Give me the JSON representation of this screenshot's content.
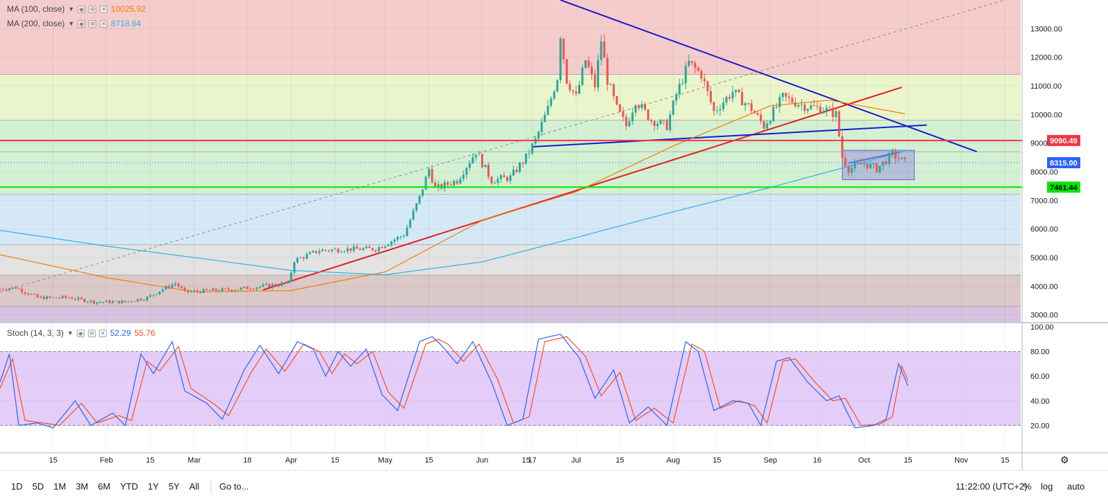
{
  "indicators": {
    "ma100": {
      "label": "MA (100, close)",
      "value": "10025.92",
      "color": "#f57c00"
    },
    "ma200": {
      "label": "MA (200, close)",
      "value": "8718.64",
      "color": "#2bb3e6"
    },
    "stoch": {
      "label": "Stoch (14, 3, 3)",
      "k_value": "52.29",
      "d_value": "55.76",
      "k_color": "#2962ff",
      "d_color": "#f4511e"
    }
  },
  "price_badges": [
    {
      "text": "9090.49",
      "price": 9090.49,
      "bg": "#f23645",
      "fg": "#ffffff"
    },
    {
      "text": "8315.00",
      "price": 8315.0,
      "bg": "#2962ff",
      "fg": "#ffffff"
    },
    {
      "text": "7461.44",
      "price": 7461.44,
      "bg": "#00e600",
      "fg": "#000000"
    }
  ],
  "toolbar": {
    "timeframes": [
      "1D",
      "5D",
      "1M",
      "3M",
      "6M",
      "YTD",
      "1Y",
      "5Y",
      "All"
    ],
    "goto": "Go to...",
    "clock": "11:22:00 (UTC+2)",
    "percent": "%",
    "log": "log",
    "auto": "auto"
  },
  "chart_data": [
    {
      "type": "candlestick",
      "y_ticks": [
        3000,
        4000,
        5000,
        6000,
        7000,
        8000,
        9000,
        10000,
        11000,
        12000,
        13000
      ],
      "y_tick_labels": [
        "3000.00",
        "4000.00",
        "5000.00",
        "6000.00",
        "7000.00",
        "8000.00",
        "9000.00",
        "10000.00",
        "11000.00",
        "12000.00",
        "13000.00"
      ],
      "ylim": [
        2750,
        14000
      ],
      "x_range": [
        "2018-12-29",
        "2019-11-20"
      ],
      "x_ticks": [
        {
          "date": "2019-01-15",
          "label": "15"
        },
        {
          "date": "2019-02-01",
          "label": "Feb"
        },
        {
          "date": "2019-02-15",
          "label": "15"
        },
        {
          "date": "2019-03-01",
          "label": "Mar"
        },
        {
          "date": "2019-03-18",
          "label": "18"
        },
        {
          "date": "2019-04-01",
          "label": "Apr"
        },
        {
          "date": "2019-04-15",
          "label": "15"
        },
        {
          "date": "2019-05-01",
          "label": "May"
        },
        {
          "date": "2019-05-15",
          "label": "15"
        },
        {
          "date": "2019-06-01",
          "label": "Jun"
        },
        {
          "date": "2019-06-15",
          "label": "15"
        },
        {
          "date": "2019-06-17",
          "label": "17"
        },
        {
          "date": "2019-07-01",
          "label": "Jul"
        },
        {
          "date": "2019-07-15",
          "label": "15"
        },
        {
          "date": "2019-08-01",
          "label": "Aug"
        },
        {
          "date": "2019-08-15",
          "label": "15"
        },
        {
          "date": "2019-09-01",
          "label": "Sep"
        },
        {
          "date": "2019-09-16",
          "label": "16"
        },
        {
          "date": "2019-10-01",
          "label": "Oct"
        },
        {
          "date": "2019-10-15",
          "label": "15"
        },
        {
          "date": "2019-11-01",
          "label": "Nov"
        },
        {
          "date": "2019-11-15",
          "label": "15"
        }
      ],
      "price_anchors": [
        [
          "2018-12-29",
          3900
        ],
        [
          "2019-01-03",
          3950
        ],
        [
          "2019-01-10",
          3600
        ],
        [
          "2019-01-20",
          3600
        ],
        [
          "2019-01-28",
          3450
        ],
        [
          "2019-02-07",
          3450
        ],
        [
          "2019-02-14",
          3600
        ],
        [
          "2019-02-19",
          3900
        ],
        [
          "2019-02-23",
          4100
        ],
        [
          "2019-02-26",
          3800
        ],
        [
          "2019-03-15",
          3900
        ],
        [
          "2019-03-31",
          4100
        ],
        [
          "2019-04-02",
          4900
        ],
        [
          "2019-04-10",
          5250
        ],
        [
          "2019-04-20",
          5300
        ],
        [
          "2019-04-28",
          5300
        ],
        [
          "2019-05-07",
          5800
        ],
        [
          "2019-05-12",
          7100
        ],
        [
          "2019-05-15",
          8100
        ],
        [
          "2019-05-17",
          7400
        ],
        [
          "2019-05-24",
          7700
        ],
        [
          "2019-05-30",
          8700
        ],
        [
          "2019-06-04",
          7700
        ],
        [
          "2019-06-10",
          7800
        ],
        [
          "2019-06-15",
          8500
        ],
        [
          "2019-06-18",
          9100
        ],
        [
          "2019-06-22",
          10200
        ],
        [
          "2019-06-25",
          11300
        ],
        [
          "2019-06-26",
          12800
        ],
        [
          "2019-06-28",
          11200
        ],
        [
          "2019-07-01",
          10600
        ],
        [
          "2019-07-04",
          11900
        ],
        [
          "2019-07-07",
          11000
        ],
        [
          "2019-07-09",
          12600
        ],
        [
          "2019-07-11",
          11200
        ],
        [
          "2019-07-14",
          10200
        ],
        [
          "2019-07-17",
          9600
        ],
        [
          "2019-07-20",
          10500
        ],
        [
          "2019-07-25",
          9800
        ],
        [
          "2019-07-30",
          9600
        ],
        [
          "2019-08-02",
          10700
        ],
        [
          "2019-08-06",
          11800
        ],
        [
          "2019-08-10",
          11400
        ],
        [
          "2019-08-14",
          10100
        ],
        [
          "2019-08-20",
          10800
        ],
        [
          "2019-08-26",
          10200
        ],
        [
          "2019-08-30",
          9600
        ],
        [
          "2019-09-05",
          10600
        ],
        [
          "2019-09-12",
          10300
        ],
        [
          "2019-09-18",
          10200
        ],
        [
          "2019-09-22",
          10000
        ],
        [
          "2019-09-24",
          8500
        ],
        [
          "2019-09-26",
          8100
        ],
        [
          "2019-10-01",
          8300
        ],
        [
          "2019-10-05",
          8100
        ],
        [
          "2019-10-08",
          8400
        ],
        [
          "2019-10-10",
          8600
        ],
        [
          "2019-10-14",
          8315
        ]
      ],
      "ma100_anchors": [
        [
          "2018-12-29",
          5100
        ],
        [
          "2019-02-01",
          4300
        ],
        [
          "2019-03-01",
          3800
        ],
        [
          "2019-04-01",
          3850
        ],
        [
          "2019-05-01",
          4500
        ],
        [
          "2019-06-01",
          6300
        ],
        [
          "2019-07-01",
          7300
        ],
        [
          "2019-08-01",
          8900
        ],
        [
          "2019-09-01",
          10300
        ],
        [
          "2019-09-20",
          10500
        ],
        [
          "2019-10-14",
          10025
        ]
      ],
      "ma200_anchors": [
        [
          "2018-12-29",
          5950
        ],
        [
          "2019-02-01",
          5400
        ],
        [
          "2019-03-01",
          5000
        ],
        [
          "2019-04-01",
          4550
        ],
        [
          "2019-05-01",
          4400
        ],
        [
          "2019-06-01",
          4850
        ],
        [
          "2019-07-01",
          5700
        ],
        [
          "2019-08-01",
          6600
        ],
        [
          "2019-09-01",
          7450
        ],
        [
          "2019-10-14",
          8718
        ]
      ],
      "fib_levels": [
        3300,
        4390,
        5450,
        7210,
        8700,
        9800,
        11400
      ],
      "zones": [
        {
          "from": 11400,
          "to": 14000,
          "color": "#f5cccc"
        },
        {
          "from": 9800,
          "to": 11400,
          "color": "#eaf5cc"
        },
        {
          "from": 7210,
          "to": 9800,
          "color": "#d3f0d3"
        },
        {
          "from": 5450,
          "to": 7210,
          "color": "#d5e8f5"
        },
        {
          "from": 4390,
          "to": 5450,
          "color": "#e3e3e3"
        },
        {
          "from": 3300,
          "to": 4390,
          "color": "#dbc9c9"
        },
        {
          "from": 2750,
          "to": 3300,
          "color": "#d9c2e0"
        }
      ],
      "trendlines": [
        {
          "name": "descending-resistance",
          "from": [
            "2019-06-26",
            14000
          ],
          "to": [
            "2019-11-06",
            8700
          ],
          "color": "#1a1aca"
        },
        {
          "name": "ascending-support",
          "from": [
            "2019-03-23",
            3870
          ],
          "to": [
            "2019-10-13",
            10950
          ],
          "color": "#e31c1c"
        },
        {
          "name": "neckline",
          "from": [
            "2019-06-17",
            8870
          ],
          "to": [
            "2019-10-21",
            9630
          ],
          "color": "#1a1aca"
        },
        {
          "name": "long-dashed-trend",
          "from": [
            "2018-12-29",
            3800
          ],
          "to": [
            "2019-11-15",
            14000
          ],
          "color": "#8a8a8a",
          "dashed": true
        },
        {
          "name": "channel-line",
          "from": [
            "2019-09-26",
            8300
          ],
          "to": [
            "2019-10-13",
            8700
          ],
          "color": "#4a56d0"
        }
      ],
      "horizontal_lines": [
        {
          "name": "resistance-line",
          "price": 9090.49,
          "color": "#f23645"
        },
        {
          "name": "support-line",
          "price": 7461.44,
          "color": "#00e600"
        },
        {
          "name": "last-price-line",
          "price": 8315.0,
          "color": "#2962ff",
          "dotted": true
        }
      ],
      "rectangle": {
        "from": [
          "2019-09-24",
          8750
        ],
        "to": [
          "2019-10-17",
          7720
        ],
        "fill": "#8c85de",
        "stroke": "#6a5fcf"
      }
    },
    {
      "type": "line",
      "name": "stochastic",
      "y_ticks": [
        20,
        40,
        60,
        80,
        100
      ],
      "y_tick_labels": [
        "20.00",
        "40.00",
        "60.00",
        "80.00",
        "100.00"
      ],
      "ylim": [
        0,
        100
      ],
      "band": [
        20,
        80
      ],
      "k_anchors": [
        [
          "2018-12-29",
          55
        ],
        [
          "2019-01-01",
          78
        ],
        [
          "2019-01-04",
          20
        ],
        [
          "2019-01-10",
          22
        ],
        [
          "2019-01-15",
          18
        ],
        [
          "2019-01-22",
          40
        ],
        [
          "2019-01-27",
          20
        ],
        [
          "2019-02-03",
          30
        ],
        [
          "2019-02-07",
          20
        ],
        [
          "2019-02-12",
          78
        ],
        [
          "2019-02-16",
          62
        ],
        [
          "2019-02-22",
          88
        ],
        [
          "2019-02-26",
          48
        ],
        [
          "2019-03-05",
          38
        ],
        [
          "2019-03-10",
          25
        ],
        [
          "2019-03-17",
          65
        ],
        [
          "2019-03-22",
          85
        ],
        [
          "2019-03-28",
          62
        ],
        [
          "2019-04-03",
          88
        ],
        [
          "2019-04-08",
          82
        ],
        [
          "2019-04-12",
          60
        ],
        [
          "2019-04-16",
          80
        ],
        [
          "2019-04-20",
          68
        ],
        [
          "2019-04-25",
          82
        ],
        [
          "2019-04-30",
          45
        ],
        [
          "2019-05-05",
          32
        ],
        [
          "2019-05-12",
          88
        ],
        [
          "2019-05-16",
          92
        ],
        [
          "2019-05-19",
          85
        ],
        [
          "2019-05-24",
          70
        ],
        [
          "2019-05-29",
          88
        ],
        [
          "2019-06-04",
          55
        ],
        [
          "2019-06-09",
          20
        ],
        [
          "2019-06-14",
          25
        ],
        [
          "2019-06-19",
          90
        ],
        [
          "2019-06-26",
          94
        ],
        [
          "2019-07-02",
          75
        ],
        [
          "2019-07-07",
          42
        ],
        [
          "2019-07-13",
          65
        ],
        [
          "2019-07-18",
          22
        ],
        [
          "2019-07-24",
          35
        ],
        [
          "2019-07-30",
          20
        ],
        [
          "2019-08-05",
          88
        ],
        [
          "2019-08-09",
          80
        ],
        [
          "2019-08-14",
          32
        ],
        [
          "2019-08-20",
          40
        ],
        [
          "2019-08-25",
          38
        ],
        [
          "2019-08-29",
          20
        ],
        [
          "2019-09-03",
          72
        ],
        [
          "2019-09-07",
          75
        ],
        [
          "2019-09-13",
          55
        ],
        [
          "2019-09-19",
          40
        ],
        [
          "2019-09-23",
          44
        ],
        [
          "2019-09-28",
          18
        ],
        [
          "2019-10-04",
          20
        ],
        [
          "2019-10-08",
          25
        ],
        [
          "2019-10-12",
          70
        ],
        [
          "2019-10-15",
          52
        ]
      ],
      "d_anchors": [
        [
          "2018-12-29",
          50
        ],
        [
          "2019-01-02",
          74
        ],
        [
          "2019-01-06",
          24
        ],
        [
          "2019-01-12",
          22
        ],
        [
          "2019-01-17",
          20
        ],
        [
          "2019-01-24",
          38
        ],
        [
          "2019-01-29",
          22
        ],
        [
          "2019-02-05",
          28
        ],
        [
          "2019-02-09",
          24
        ],
        [
          "2019-02-14",
          72
        ],
        [
          "2019-02-18",
          64
        ],
        [
          "2019-02-24",
          84
        ],
        [
          "2019-02-28",
          50
        ],
        [
          "2019-03-07",
          38
        ],
        [
          "2019-03-12",
          28
        ],
        [
          "2019-03-19",
          62
        ],
        [
          "2019-03-24",
          82
        ],
        [
          "2019-03-30",
          64
        ],
        [
          "2019-04-05",
          86
        ],
        [
          "2019-04-10",
          80
        ],
        [
          "2019-04-14",
          62
        ],
        [
          "2019-04-18",
          78
        ],
        [
          "2019-04-22",
          70
        ],
        [
          "2019-04-27",
          80
        ],
        [
          "2019-05-02",
          47
        ],
        [
          "2019-05-07",
          34
        ],
        [
          "2019-05-14",
          86
        ],
        [
          "2019-05-18",
          90
        ],
        [
          "2019-05-21",
          86
        ],
        [
          "2019-05-26",
          72
        ],
        [
          "2019-05-31",
          86
        ],
        [
          "2019-06-06",
          57
        ],
        [
          "2019-06-11",
          22
        ],
        [
          "2019-06-16",
          27
        ],
        [
          "2019-06-21",
          88
        ],
        [
          "2019-06-28",
          92
        ],
        [
          "2019-07-04",
          76
        ],
        [
          "2019-07-09",
          44
        ],
        [
          "2019-07-15",
          63
        ],
        [
          "2019-07-20",
          24
        ],
        [
          "2019-07-26",
          34
        ],
        [
          "2019-08-01",
          22
        ],
        [
          "2019-08-07",
          86
        ],
        [
          "2019-08-11",
          80
        ],
        [
          "2019-08-16",
          34
        ],
        [
          "2019-08-22",
          40
        ],
        [
          "2019-08-27",
          36
        ],
        [
          "2019-08-31",
          22
        ],
        [
          "2019-09-05",
          72
        ],
        [
          "2019-09-09",
          74
        ],
        [
          "2019-09-15",
          56
        ],
        [
          "2019-09-21",
          40
        ],
        [
          "2019-09-25",
          42
        ],
        [
          "2019-09-30",
          20
        ],
        [
          "2019-10-06",
          21
        ],
        [
          "2019-10-10",
          27
        ],
        [
          "2019-10-13",
          68
        ],
        [
          "2019-10-15",
          56
        ]
      ]
    }
  ]
}
